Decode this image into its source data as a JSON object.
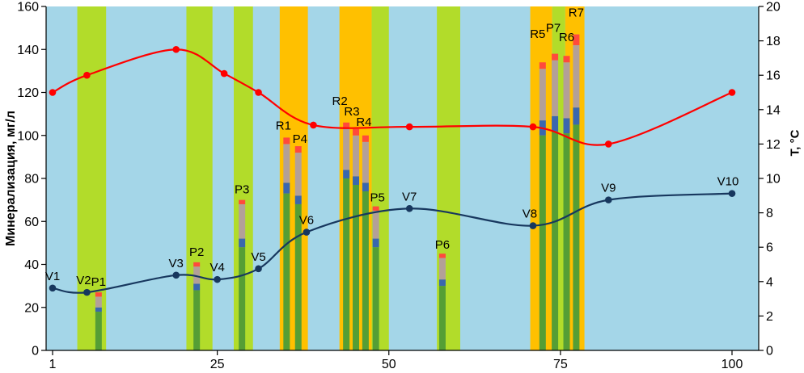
{
  "chart_data": {
    "type": "combo",
    "title": "",
    "colors": {
      "plot_background": "#A4D6E8",
      "band_green": "#B2DC2A",
      "band_orange": "#FFC000",
      "bar_segments": [
        "#559E35",
        "#3A67AE",
        "#B3A098",
        "#FF4A3C"
      ],
      "line_mineralization": "#17375E",
      "line_temperature": "#FF0000",
      "axis": "#000000"
    },
    "left_axis": {
      "label": "Минерализация, мг/л",
      "min": 0,
      "max": 160,
      "ticks": [
        0,
        20,
        40,
        60,
        80,
        100,
        120,
        140,
        160
      ]
    },
    "right_axis": {
      "label": "Т, °С",
      "min": 0,
      "max": 20,
      "ticks": [
        0,
        2,
        4,
        6,
        8,
        10,
        12,
        14,
        16,
        18,
        20
      ]
    },
    "x_axis": {
      "min": 1,
      "max": 100,
      "ticks": [
        1,
        25,
        50,
        75,
        100
      ]
    },
    "legend": "none",
    "grid": "off",
    "bands": [
      {
        "from": 4.6,
        "to": 8.8,
        "color": "green"
      },
      {
        "from": 20.5,
        "to": 24.3,
        "color": "green"
      },
      {
        "from": 27.4,
        "to": 30.2,
        "color": "green"
      },
      {
        "from": 34.1,
        "to": 38.2,
        "color": "orange"
      },
      {
        "from": 42.8,
        "to": 47.5,
        "color": "orange"
      },
      {
        "from": 47.5,
        "to": 50.0,
        "color": "green"
      },
      {
        "from": 57.0,
        "to": 60.4,
        "color": "green"
      },
      {
        "from": 70.6,
        "to": 73.8,
        "color": "orange"
      },
      {
        "from": 73.8,
        "to": 75.7,
        "color": "green"
      },
      {
        "from": 75.7,
        "to": 78.5,
        "color": "orange"
      }
    ],
    "bars": [
      {
        "label": "P1",
        "x": 7.7,
        "segments": [
          18,
          2,
          5,
          2
        ],
        "label_dx": 0,
        "label_dy": -8
      },
      {
        "label": "P2",
        "x": 22.0,
        "segments": [
          28,
          3,
          8,
          2
        ],
        "label_dx": 0,
        "label_dy": -8
      },
      {
        "label": "P3",
        "x": 28.6,
        "segments": [
          48,
          4,
          16,
          2
        ],
        "label_dx": 0,
        "label_dy": -8
      },
      {
        "label": "R1",
        "x": 35.1,
        "segments": [
          73,
          5,
          18,
          3
        ],
        "label_dx": -4,
        "label_dy": -10
      },
      {
        "label": "P4",
        "x": 36.8,
        "segments": [
          68,
          4,
          20,
          3
        ],
        "label_dx": 2,
        "label_dy": -4
      },
      {
        "label": "R2",
        "x": 43.8,
        "segments": [
          80,
          4,
          19,
          3
        ],
        "label_dx": -8,
        "label_dy": -22
      },
      {
        "label": "R3",
        "x": 45.2,
        "segments": [
          77,
          4,
          19,
          3
        ],
        "label_dx": -5,
        "label_dy": -17
      },
      {
        "label": "R4",
        "x": 46.6,
        "segments": [
          74,
          4,
          19,
          3
        ],
        "label_dx": -2,
        "label_dy": -12
      },
      {
        "label": "P5",
        "x": 48.1,
        "segments": [
          48,
          4,
          13,
          2
        ],
        "label_dx": 2,
        "label_dy": -6
      },
      {
        "label": "P6",
        "x": 57.8,
        "segments": [
          30,
          3,
          10,
          2
        ],
        "label_dx": 0,
        "label_dy": -6
      },
      {
        "label": "R5",
        "x": 72.4,
        "segments": [
          100,
          7,
          24,
          3
        ],
        "label_dx": -6,
        "label_dy": -30
      },
      {
        "label": "P7",
        "x": 74.2,
        "segments": [
          102,
          7,
          26,
          3
        ],
        "label_dx": -2,
        "label_dy": -27
      },
      {
        "label": "R6",
        "x": 75.9,
        "segments": [
          101,
          7,
          26,
          3
        ],
        "label_dx": 0,
        "label_dy": -18
      },
      {
        "label": "R7",
        "x": 77.3,
        "segments": [
          105,
          8,
          29,
          5
        ],
        "label_dx": 0,
        "label_dy": -22
      }
    ],
    "series": [
      {
        "name": "mineralization",
        "axis": "left",
        "color_key": "line_mineralization",
        "points": [
          {
            "x": 1,
            "y": 29,
            "label": "V1"
          },
          {
            "x": 6,
            "y": 27,
            "label": "V2",
            "label_dx": -4
          },
          {
            "x": 19,
            "y": 35,
            "label": "V3"
          },
          {
            "x": 25,
            "y": 33,
            "label": "V4"
          },
          {
            "x": 31,
            "y": 38,
            "label": "V5"
          },
          {
            "x": 38,
            "y": 55,
            "label": "V6"
          },
          {
            "x": 53,
            "y": 66,
            "label": "V7"
          },
          {
            "x": 71,
            "y": 58,
            "label": "V8",
            "label_dx": -4
          },
          {
            "x": 82,
            "y": 70,
            "label": "V9"
          },
          {
            "x": 100,
            "y": 73,
            "label": "V10",
            "label_dx": -5
          }
        ]
      },
      {
        "name": "temperature",
        "axis": "right",
        "color_key": "line_temperature",
        "points": [
          {
            "x": 1,
            "y": 15.0
          },
          {
            "x": 6,
            "y": 16.0
          },
          {
            "x": 19,
            "y": 17.5
          },
          {
            "x": 26,
            "y": 16.1
          },
          {
            "x": 31,
            "y": 15.0
          },
          {
            "x": 39,
            "y": 13.1
          },
          {
            "x": 53,
            "y": 13.0
          },
          {
            "x": 71,
            "y": 13.0
          },
          {
            "x": 82,
            "y": 12.0
          },
          {
            "x": 100,
            "y": 15.0
          }
        ]
      }
    ]
  }
}
